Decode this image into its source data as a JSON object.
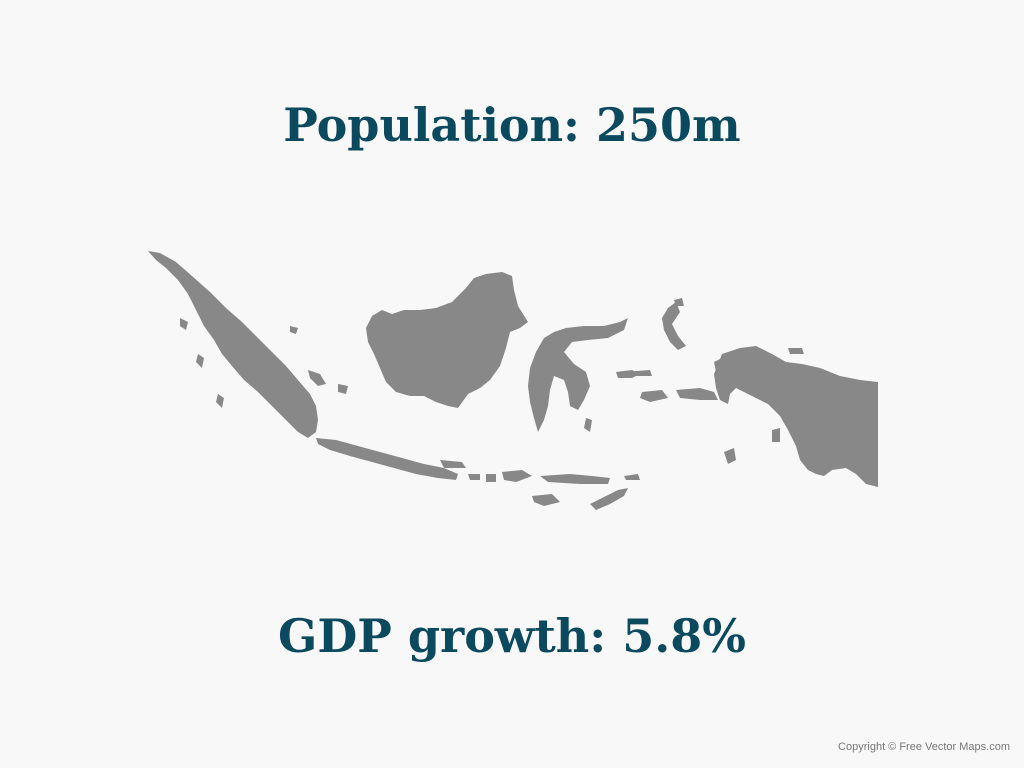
{
  "headlines": {
    "population": "Population: 250m",
    "gdp_growth": "GDP growth: 5.8%"
  },
  "map": {
    "subject": "Indonesia map",
    "fill_color": "#888888"
  },
  "footer": {
    "credit": "Copyright © Free Vector Maps.com"
  },
  "colors": {
    "background": "#f8f8f8",
    "headline_text": "#0b4a5e"
  }
}
